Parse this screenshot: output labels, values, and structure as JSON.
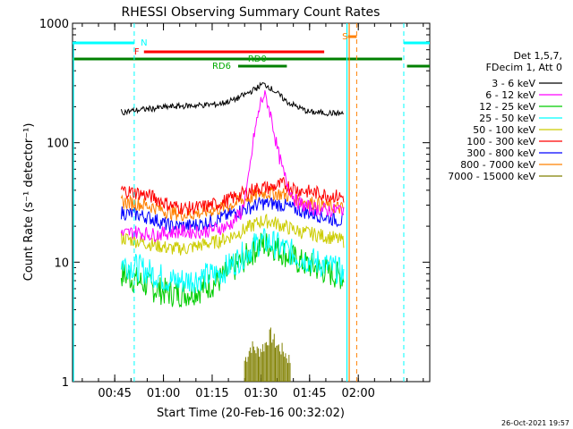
{
  "chart_data": {
    "type": "line",
    "title": "RHESSI Observing Summary Count Rates",
    "xlabel": "Start Time (20-Feb-16 00:32:02)",
    "ylabel": "Count Rate (s⁻¹ detector⁻¹)",
    "y_scale": "log",
    "ylim": [
      1,
      1000
    ],
    "xlim_minutes": [
      0,
      110
    ],
    "y_ticks": [
      {
        "value": 1,
        "label": "1"
      },
      {
        "value": 10,
        "label": "10"
      },
      {
        "value": 100,
        "label": "100"
      },
      {
        "value": 1000,
        "label": "1000"
      }
    ],
    "x_ticks": [
      {
        "minutes": 13,
        "label": "00:45"
      },
      {
        "minutes": 28,
        "label": "01:00"
      },
      {
        "minutes": 43,
        "label": "01:15"
      },
      {
        "minutes": 58,
        "label": "01:30"
      },
      {
        "minutes": 73,
        "label": "01:45"
      },
      {
        "minutes": 88,
        "label": "02:00"
      }
    ],
    "legend": {
      "header": [
        "Det 1,5,7,",
        "FDecim 1, Att 0"
      ],
      "placement": "right"
    },
    "series": [
      {
        "name": "3 - 6 keV",
        "color": "#000000",
        "x": [
          15,
          22,
          30,
          38,
          45,
          50,
          54,
          57,
          58.5,
          60,
          63,
          66,
          70,
          73,
          83.5
        ],
        "y": [
          180,
          190,
          200,
          205,
          210,
          230,
          260,
          290,
          310,
          300,
          260,
          220,
          195,
          180,
          175
        ]
      },
      {
        "name": "6 - 12 keV",
        "color": "#ff00ff",
        "x": [
          15,
          19,
          25,
          32,
          40,
          48,
          52,
          54,
          56,
          58,
          59,
          60,
          61.5,
          63,
          65,
          67,
          69,
          72,
          75,
          80,
          83.5
        ],
        "y": [
          17,
          18,
          17,
          18,
          18,
          20,
          26,
          45,
          120,
          220,
          250,
          220,
          150,
          90,
          55,
          40,
          32,
          29,
          28,
          27,
          28
        ]
      },
      {
        "name": "12 - 25 keV",
        "color": "#00cc00",
        "x": [
          15,
          20,
          25,
          30,
          35,
          40,
          45,
          50,
          55,
          58,
          61,
          65,
          70,
          75,
          80,
          83.5
        ],
        "y": [
          8,
          7,
          6,
          5.5,
          5.5,
          6,
          7,
          9,
          12,
          14,
          14,
          12,
          10,
          9,
          8,
          7.5
        ]
      },
      {
        "name": "25 - 50 keV",
        "color": "#00ffff",
        "x": [
          15,
          20,
          25,
          30,
          35,
          40,
          45,
          50,
          55,
          58,
          61,
          65,
          70,
          75,
          80,
          83.5
        ],
        "y": [
          10,
          9,
          8,
          7,
          7,
          7.5,
          8,
          10,
          13,
          15,
          14.5,
          13,
          11,
          10,
          9,
          8
        ]
      },
      {
        "name": "50 - 100 keV",
        "color": "#cccc00",
        "x": [
          15,
          20,
          25,
          30,
          35,
          40,
          45,
          50,
          55,
          58,
          61,
          65,
          70,
          75,
          80,
          83.5
        ],
        "y": [
          16,
          15,
          14,
          13,
          13,
          14,
          15,
          17,
          20,
          22,
          22,
          20,
          18,
          17,
          16,
          15
        ]
      },
      {
        "name": "100 - 300 keV",
        "color": "#ff0000",
        "x": [
          15,
          20,
          25,
          30,
          35,
          40,
          45,
          50,
          55,
          58,
          61,
          65,
          70,
          75,
          80,
          83.5
        ],
        "y": [
          40,
          38,
          35,
          30,
          28,
          29,
          31,
          35,
          40,
          42,
          42,
          45,
          40,
          38,
          36,
          35
        ]
      },
      {
        "name": "300 - 800 keV",
        "color": "#0000ff",
        "x": [
          15,
          20,
          25,
          30,
          35,
          40,
          45,
          50,
          55,
          58,
          61,
          65,
          70,
          75,
          80,
          83.5
        ],
        "y": [
          26,
          25,
          23,
          20,
          20,
          21,
          23,
          26,
          29,
          31,
          31,
          30,
          27,
          25,
          23,
          22
        ]
      },
      {
        "name": "800 - 7000 keV",
        "color": "#ff8000",
        "x": [
          15,
          20,
          25,
          30,
          35,
          40,
          45,
          50,
          55,
          58,
          61,
          65,
          70,
          75,
          80,
          83.5
        ],
        "y": [
          32,
          31,
          29,
          26,
          25,
          26,
          28,
          31,
          35,
          38,
          38,
          37,
          33,
          31,
          29,
          28
        ]
      },
      {
        "name": "7000 - 15000 keV",
        "color": "#808000",
        "x": [
          53,
          55,
          57,
          59,
          61,
          63,
          65,
          67
        ],
        "y": [
          1.5,
          2,
          1.8,
          2,
          2.5,
          2,
          1.8,
          1.5
        ]
      }
    ],
    "annotations": [
      {
        "label": "N",
        "color": "#00ffff",
        "minutes": 20
      },
      {
        "label": "F",
        "color": "#ff0000",
        "minutes": 20
      },
      {
        "label": "RD0",
        "color": "#00aa00",
        "minutes": 56
      },
      {
        "label": "RD6",
        "color": "#00aa00",
        "minutes": 44
      },
      {
        "label": "S",
        "color": "#ff8000",
        "minutes": 86
      }
    ],
    "timestamp": "26-Oct-2021 19:57"
  }
}
